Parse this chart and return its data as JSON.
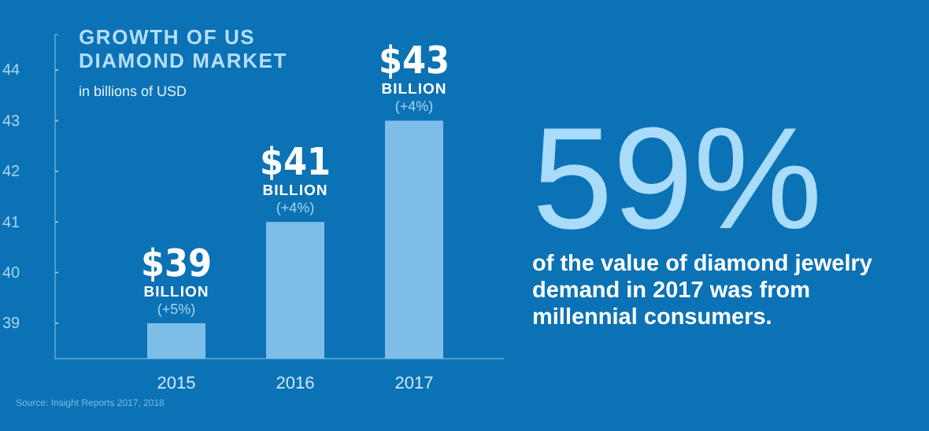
{
  "chart_data": [
    {
      "type": "bar",
      "title": "GROWTH OF US DIAMOND MARKET",
      "subtitle": "in billions of USD",
      "categories": [
        "2015",
        "2016",
        "2017"
      ],
      "values": [
        39,
        41,
        43
      ],
      "color": "#7dbde8",
      "value_labels": [
        "$39\nBILLION\n(+5%)",
        "$41\nBILLION\n(+4%)",
        "$43\nBILLION\n(+4%)"
      ],
      "ylim": [
        38.3,
        44.7
      ],
      "yticks": [
        39,
        40,
        41,
        42,
        43,
        44
      ],
      "grid": false,
      "annotations": [
        "Source: Insight Reports 2017, 2018"
      ]
    },
    {
      "type": "other",
      "title": "59%",
      "subtitle": "of the value of diamond jewelry demand in 2017 was from millennial consumers."
    }
  ]
}
